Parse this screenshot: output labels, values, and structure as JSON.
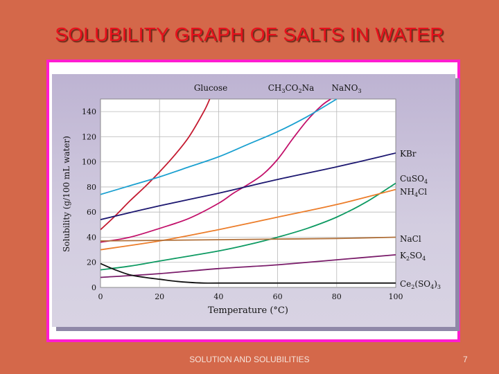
{
  "slide": {
    "title": "SOLUBILITY GRAPH OF SALTS IN WATER",
    "footer": "SOLUTION AND SOLUBILITIES",
    "page_number": "7"
  },
  "colors": {
    "background": "#d4684a",
    "title": "#e8101c",
    "frame": "#ff1cd0"
  },
  "chart_data": {
    "type": "line",
    "title": "",
    "xlabel": "Temperature (°C)",
    "ylabel": "Solubility (g/100 mL water)",
    "xlim": [
      0,
      100
    ],
    "ylim": [
      0,
      150
    ],
    "x_ticks": [
      "0",
      "20",
      "40",
      "60",
      "80",
      "100"
    ],
    "y_ticks": [
      "0",
      "20",
      "40",
      "60",
      "80",
      "100",
      "120",
      "140"
    ],
    "grid": true,
    "series": [
      {
        "name": "Glucose",
        "parts": [
          "Glucose"
        ],
        "color": "#c41a30",
        "x": [
          0,
          5,
          10,
          15,
          20,
          25,
          30,
          35,
          37
        ],
        "y": [
          46,
          57,
          69,
          80,
          92,
          105,
          120,
          140,
          150
        ]
      },
      {
        "name": "CH3CO2Na",
        "parts": [
          "CH",
          "3",
          "CO",
          "2",
          "Na"
        ],
        "color": "#c2106a",
        "x": [
          0,
          10,
          20,
          30,
          40,
          45,
          50,
          55,
          60,
          65,
          70,
          75,
          78
        ],
        "y": [
          36,
          40,
          47,
          55,
          67,
          75,
          82,
          90,
          102,
          118,
          133,
          145,
          150
        ]
      },
      {
        "name": "NaNO3",
        "parts": [
          "NaNO",
          "3"
        ],
        "color": "#1aa0d0",
        "x": [
          0,
          10,
          20,
          30,
          40,
          50,
          60,
          70,
          80
        ],
        "y": [
          74,
          81,
          88,
          96,
          104,
          114,
          124,
          136,
          150
        ]
      },
      {
        "name": "KBr",
        "parts": [
          "KBr"
        ],
        "color": "#1c1770",
        "x": [
          0,
          20,
          40,
          60,
          80,
          100
        ],
        "y": [
          54,
          65,
          75,
          86,
          96,
          107
        ]
      },
      {
        "name": "CuSO4",
        "parts": [
          "CuSO",
          "4"
        ],
        "color": "#0d9a62",
        "x": [
          0,
          10,
          20,
          30,
          40,
          50,
          60,
          70,
          80,
          90,
          100
        ],
        "y": [
          14,
          17,
          21,
          25,
          29,
          34,
          40,
          47,
          56,
          68,
          83
        ]
      },
      {
        "name": "NH4Cl",
        "parts": [
          "NH",
          "4",
          "Cl"
        ],
        "color": "#ec7d2a",
        "x": [
          0,
          20,
          40,
          60,
          80,
          100
        ],
        "y": [
          30,
          37,
          46,
          56,
          66,
          78
        ]
      },
      {
        "name": "NaCl",
        "parts": [
          "NaCl"
        ],
        "color": "#b0703a",
        "x": [
          0,
          20,
          40,
          60,
          80,
          100
        ],
        "y": [
          37,
          37.5,
          38,
          38.5,
          39,
          40
        ]
      },
      {
        "name": "K2SO4",
        "parts": [
          "K",
          "2",
          "SO",
          "4"
        ],
        "color": "#7a1c6a",
        "x": [
          0,
          20,
          40,
          60,
          80,
          100
        ],
        "y": [
          8,
          11,
          15,
          18,
          22,
          26
        ]
      },
      {
        "name": "Ce2(SO4)3",
        "parts": [
          "Ce",
          "2",
          "(SO",
          "4",
          ")",
          "3"
        ],
        "color": "#111111",
        "x": [
          0,
          5,
          10,
          15,
          20,
          25,
          30,
          35,
          40,
          60,
          80,
          100
        ],
        "y": [
          19,
          14,
          10,
          8,
          6.5,
          5,
          4,
          3.5,
          3.5,
          3.5,
          3.5,
          3.5
        ]
      }
    ]
  }
}
